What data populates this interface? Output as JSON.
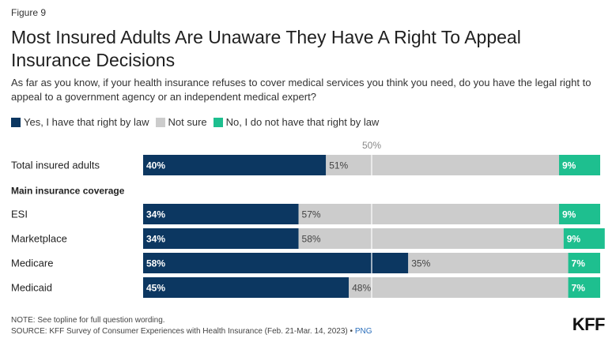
{
  "figure_label": "Figure 9",
  "title": "Most Insured Adults Are Unaware They Have A Right To Appeal Insurance Decisions",
  "subtitle": "As far as you know, if your health insurance refuses to cover medical services you think you need, do you have the legal right to appeal to a government agency or an independent medical expert?",
  "legend": [
    {
      "label": "Yes, I have that right by law",
      "color": "#0c3761"
    },
    {
      "label": "Not sure",
      "color": "#cccccc"
    },
    {
      "label": "No, I do not have that right by law",
      "color": "#1ebf8f"
    }
  ],
  "reference_line": {
    "value": 50,
    "label": "50%"
  },
  "notes": {
    "note": "NOTE: See topline for full question wording.",
    "source": "SOURCE: KFF Survey of Consumer Experiences with Health Insurance (Feb. 21-Mar. 14, 2023)",
    "separator": "•",
    "png_link": "PNG"
  },
  "logo": "KFF",
  "chart_data": {
    "type": "bar",
    "orientation": "horizontal",
    "stacked": true,
    "title": "Most Insured Adults Are Unaware They Have A Right To Appeal Insurance Decisions",
    "xlim": [
      0,
      100
    ],
    "unit": "%",
    "series_names": [
      "Yes, I have that right by law",
      "Not sure",
      "No, I do not have that right by law"
    ],
    "series_colors": [
      "#0c3761",
      "#cccccc",
      "#1ebf8f"
    ],
    "group_heading": "Main insurance coverage",
    "rows": [
      {
        "category": "Total insured adults",
        "values": [
          40,
          51,
          9
        ],
        "labels": [
          "40%",
          "51%",
          "9%"
        ]
      },
      {
        "category": "ESI",
        "values": [
          34,
          57,
          9
        ],
        "labels": [
          "34%",
          "57%",
          "9%"
        ]
      },
      {
        "category": "Marketplace",
        "values": [
          34,
          58,
          9
        ],
        "labels": [
          "34%",
          "58%",
          "9%"
        ]
      },
      {
        "category": "Medicare",
        "values": [
          58,
          35,
          7
        ],
        "labels": [
          "58%",
          "35%",
          "7%"
        ]
      },
      {
        "category": "Medicaid",
        "values": [
          45,
          48,
          7
        ],
        "labels": [
          "45%",
          "48%",
          "7%"
        ]
      }
    ]
  }
}
